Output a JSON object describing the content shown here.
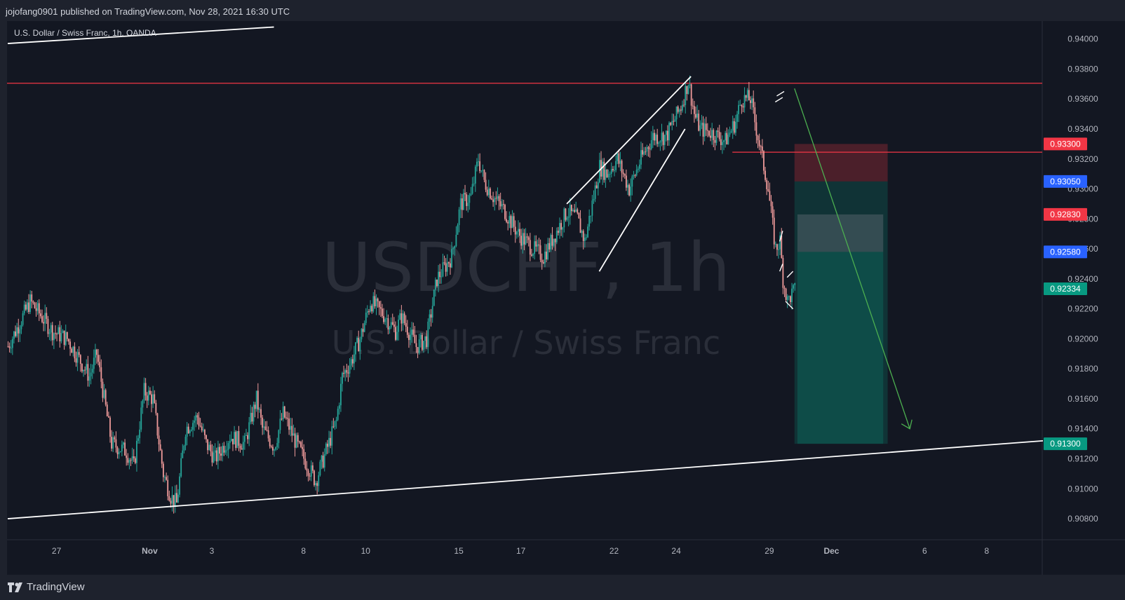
{
  "header": {
    "publish_text": "jojofang0901 published on TradingView.com, Nov 28, 2021 16:30 UTC"
  },
  "footer": {
    "brand": "TradingView",
    "logo_icon": "tradingview-logo-icon"
  },
  "chart_data": {
    "type": "candlestick",
    "symbol_legend": "U.S. Dollar / Swiss Franc, 1h, OANDA",
    "watermark_symbol": "USDCHF, 1h",
    "watermark_name": "U.S. Dollar / Swiss Franc",
    "y_axis": {
      "range": [
        0.9066,
        0.9412
      ],
      "ticks": [
        "0.94000",
        "0.93800",
        "0.93600",
        "0.93400",
        "0.93200",
        "0.93000",
        "0.92800",
        "0.92600",
        "0.92400",
        "0.92200",
        "0.92000",
        "0.91800",
        "0.91600",
        "0.91400",
        "0.91200",
        "0.91000",
        "0.90800"
      ]
    },
    "x_axis": {
      "labels": [
        "27",
        "Nov",
        "3",
        "8",
        "10",
        "15",
        "17",
        "22",
        "24",
        "29",
        "Dec",
        "6",
        "8"
      ],
      "bold_labels": [
        "Nov",
        "Dec"
      ]
    },
    "price_path": [
      [
        0,
        0.9195
      ],
      [
        15,
        0.9225
      ],
      [
        30,
        0.9205
      ],
      [
        40,
        0.92
      ],
      [
        55,
        0.9175
      ],
      [
        60,
        0.919
      ],
      [
        65,
        0.916
      ],
      [
        70,
        0.913
      ],
      [
        80,
        0.9125
      ],
      [
        85,
        0.9115
      ],
      [
        92,
        0.9165
      ],
      [
        98,
        0.916
      ],
      [
        105,
        0.911
      ],
      [
        110,
        0.9095
      ],
      [
        114,
        0.909
      ],
      [
        120,
        0.914
      ],
      [
        128,
        0.9148
      ],
      [
        134,
        0.913
      ],
      [
        140,
        0.912
      ],
      [
        150,
        0.9135
      ],
      [
        160,
        0.913
      ],
      [
        168,
        0.916
      ],
      [
        172,
        0.914
      ],
      [
        180,
        0.9128
      ],
      [
        186,
        0.915
      ],
      [
        195,
        0.913
      ],
      [
        208,
        0.9105
      ],
      [
        215,
        0.9125
      ],
      [
        222,
        0.9145
      ],
      [
        226,
        0.9175
      ],
      [
        232,
        0.9185
      ],
      [
        238,
        0.92
      ],
      [
        245,
        0.9225
      ],
      [
        255,
        0.9215
      ],
      [
        262,
        0.9205
      ],
      [
        266,
        0.9215
      ],
      [
        276,
        0.9195
      ],
      [
        283,
        0.92
      ],
      [
        290,
        0.924
      ],
      [
        300,
        0.9255
      ],
      [
        306,
        0.929
      ],
      [
        313,
        0.9295
      ],
      [
        318,
        0.932
      ],
      [
        322,
        0.9305
      ],
      [
        328,
        0.9295
      ],
      [
        336,
        0.9285
      ],
      [
        345,
        0.927
      ],
      [
        355,
        0.926
      ],
      [
        362,
        0.9255
      ],
      [
        370,
        0.927
      ],
      [
        378,
        0.9285
      ],
      [
        385,
        0.928
      ],
      [
        390,
        0.9265
      ],
      [
        395,
        0.929
      ],
      [
        400,
        0.9315
      ],
      [
        405,
        0.931
      ],
      [
        412,
        0.932
      ],
      [
        420,
        0.93
      ],
      [
        428,
        0.932
      ],
      [
        436,
        0.9335
      ],
      [
        445,
        0.9335
      ],
      [
        455,
        0.9355
      ],
      [
        460,
        0.9372
      ],
      [
        464,
        0.935
      ],
      [
        468,
        0.934
      ],
      [
        475,
        0.9338
      ],
      [
        485,
        0.9332
      ],
      [
        492,
        0.9345
      ],
      [
        496,
        0.936
      ],
      [
        502,
        0.936
      ],
      [
        506,
        0.934
      ],
      [
        510,
        0.932
      ],
      [
        514,
        0.93
      ],
      [
        517,
        0.9275
      ],
      [
        519,
        0.926
      ],
      [
        522,
        0.9265
      ],
      [
        524,
        0.924
      ],
      [
        527,
        0.9225
      ],
      [
        530,
        0.923
      ],
      [
        532,
        0.9232
      ]
    ],
    "horizontal_lines": [
      {
        "price": 0.93705,
        "color": "#f23645"
      },
      {
        "price": 0.93245,
        "color": "#f23645"
      }
    ],
    "trend_lines": [
      {
        "from": [
          0,
          0.908
        ],
        "to": [
          700,
          0.9132
        ],
        "color": "#ffffff"
      },
      {
        "from": [
          0,
          0.9397
        ],
        "to": [
          180,
          0.9408
        ],
        "color": "#ffffff"
      },
      {
        "from": [
          378,
          0.929
        ],
        "to": [
          462,
          0.9375
        ],
        "color": "#ffffff"
      },
      {
        "from": [
          400,
          0.9245
        ],
        "to": [
          458,
          0.934
        ],
        "color": "#ffffff"
      },
      {
        "from": [
          532,
          0.9367
        ],
        "to": [
          610,
          0.914
        ],
        "color": "#4caf50"
      }
    ],
    "position_box": {
      "stop": 0.933,
      "entry": 0.9305,
      "tp_levels": [
        0.9283,
        0.9258,
        0.92334,
        0.913
      ]
    },
    "price_labels": [
      {
        "text": "0.93300",
        "price": 0.933,
        "color": "#f23645"
      },
      {
        "text": "0.93050",
        "price": 0.9305,
        "color": "#2962ff"
      },
      {
        "text": "0.92830",
        "price": 0.9283,
        "color": "#f23645"
      },
      {
        "text": "0.92580",
        "price": 0.9258,
        "color": "#2962ff"
      },
      {
        "text": "0.92334",
        "price": 0.92334,
        "color": "#089981"
      },
      {
        "text": "0.91300",
        "price": 0.913,
        "color": "#089981"
      }
    ],
    "colors": {
      "background": "#131722",
      "up": "#26a69a",
      "down": "#ef9a9a",
      "grid_text": "#b2b5be",
      "watermark": "#2a2e39"
    }
  }
}
